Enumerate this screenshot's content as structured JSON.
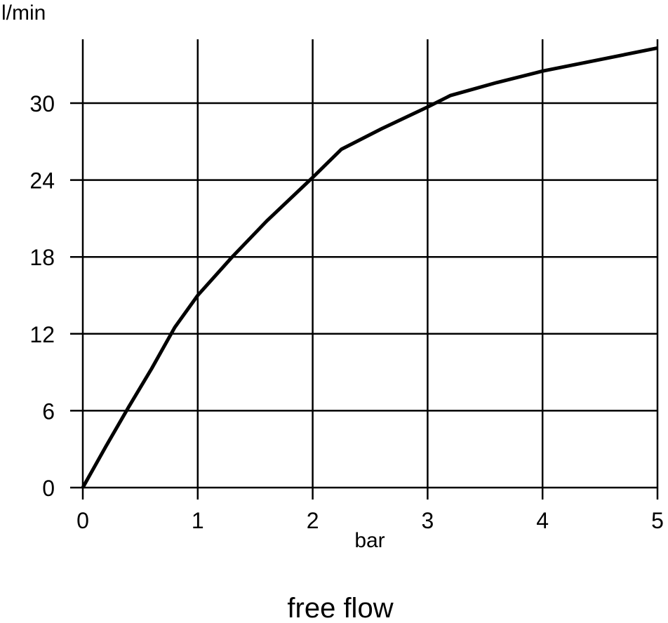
{
  "chart_data": {
    "type": "line",
    "title": "",
    "caption": "free flow",
    "xlabel": "bar",
    "ylabel": "l/min",
    "xlim": [
      0,
      5
    ],
    "ylim": [
      0,
      34.5
    ],
    "xticks": [
      "0",
      "1",
      "2",
      "3",
      "4",
      "5"
    ],
    "yticks": [
      "0",
      "6",
      "12",
      "18",
      "24",
      "30"
    ],
    "grid": true,
    "line_color": "#000000",
    "series": [
      {
        "x": [
          0,
          0.2,
          0.4,
          0.6,
          0.8,
          1.0,
          1.3,
          1.6,
          2.0,
          2.25,
          2.6,
          3.0,
          3.2,
          3.6,
          4.0,
          4.5,
          5.0
        ],
        "y": [
          0,
          3.2,
          6.3,
          9.3,
          12.5,
          15.0,
          18.0,
          20.8,
          24.2,
          26.4,
          28.0,
          29.7,
          30.6,
          31.6,
          32.5,
          33.4,
          34.3
        ]
      }
    ]
  }
}
